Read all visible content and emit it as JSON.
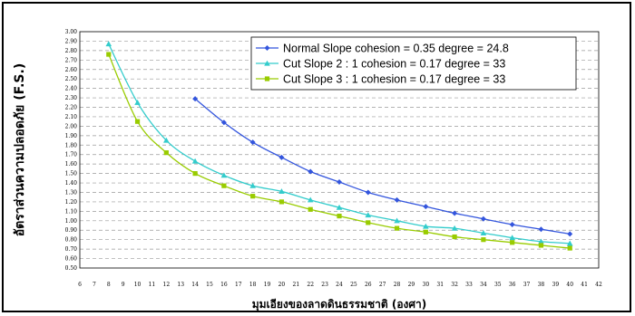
{
  "chart_data": {
    "type": "line",
    "title": "",
    "xlabel": "มุมเอียงของลาดดินธรรมชาติ (องศา)",
    "ylabel": "อัตราส่วนความปลอดภัย (F.S.)",
    "xlim": [
      6,
      42
    ],
    "ylim": [
      0.5,
      3.0
    ],
    "x_ticks": [
      6,
      7,
      8,
      9,
      10,
      11,
      12,
      13,
      14,
      15,
      16,
      17,
      18,
      19,
      20,
      21,
      22,
      23,
      24,
      25,
      26,
      27,
      28,
      29,
      30,
      31,
      32,
      33,
      34,
      35,
      36,
      37,
      38,
      39,
      40,
      41,
      42
    ],
    "y_ticks": [
      "0.50",
      "0.60",
      "0.70",
      "0.80",
      "0.90",
      "1.00",
      "1.10",
      "1.20",
      "1.30",
      "1.40",
      "1.50",
      "1.60",
      "1.70",
      "1.80",
      "1.90",
      "2.00",
      "2.10",
      "2.20",
      "2.30",
      "2.40",
      "2.50",
      "2.60",
      "2.70",
      "2.80",
      "2.90",
      "3.00"
    ],
    "grid": "horizontal-dashed",
    "legend_position": "top-right",
    "series": [
      {
        "name": "Normal Slope    cohesion = 0.35 degree = 24.8",
        "color": "#3355dd",
        "marker": "diamond",
        "x": [
          14,
          16,
          18,
          20,
          22,
          24,
          26,
          28,
          30,
          32,
          34,
          36,
          38,
          40
        ],
        "y": [
          2.29,
          2.04,
          1.83,
          1.67,
          1.52,
          1.41,
          1.3,
          1.22,
          1.15,
          1.08,
          1.02,
          0.96,
          0.91,
          0.86
        ]
      },
      {
        "name": "Cut Slope 2 : 1 cohesion = 0.17 degree = 33",
        "color": "#33cccc",
        "marker": "triangle",
        "x": [
          8,
          10,
          12,
          14,
          16,
          18,
          20,
          22,
          24,
          26,
          28,
          30,
          32,
          34,
          36,
          38,
          40
        ],
        "y": [
          2.87,
          2.25,
          1.85,
          1.63,
          1.48,
          1.37,
          1.31,
          1.22,
          1.14,
          1.06,
          1.0,
          0.94,
          0.92,
          0.87,
          0.82,
          0.78,
          0.76
        ]
      },
      {
        "name": "Cut Slope 3 : 1 cohesion = 0.17 degree = 33",
        "color": "#99cc00",
        "marker": "square",
        "x": [
          8,
          10,
          12,
          14,
          16,
          18,
          20,
          22,
          24,
          26,
          28,
          30,
          32,
          34,
          36,
          38,
          40
        ],
        "y": [
          2.76,
          2.05,
          1.72,
          1.5,
          1.37,
          1.26,
          1.2,
          1.12,
          1.05,
          0.98,
          0.92,
          0.88,
          0.83,
          0.8,
          0.77,
          0.74,
          0.71
        ]
      }
    ]
  }
}
